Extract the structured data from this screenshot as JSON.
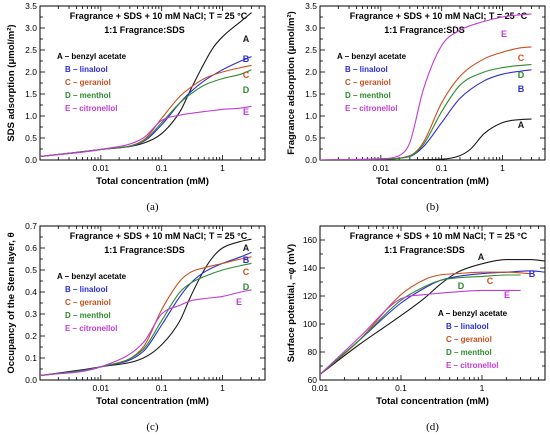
{
  "colors": {
    "A": "#1a1a1a",
    "B": "#2a2ad6",
    "C": "#c8501e",
    "D": "#2e8b2e",
    "E": "#c23bd6"
  },
  "chart_data": [
    {
      "panel_label": "(a)",
      "type": "line",
      "header_line1": "Fragrance + SDS + 10 mM NaCl; T = 25 °C",
      "header_line2": "1:1 Fragrance:SDS",
      "xlabel": "Total concentration (mM)",
      "ylabel": "SDS adsorption (μmol/m²)",
      "xscale": "log",
      "xlim": [
        0.001,
        5
      ],
      "ylim": [
        0,
        3.5
      ],
      "xticks": [
        0.01,
        0.1,
        1
      ],
      "xticklabels": [
        "0.01",
        "0.1",
        "1"
      ],
      "yticks": [
        0,
        0.5,
        1,
        1.5,
        2,
        2.5,
        3,
        3.5
      ],
      "yticklabels": [
        "0.0",
        "0.5",
        "1.0",
        "1.5",
        "2.0",
        "2.5",
        "3.0",
        "3.5"
      ],
      "legend": [
        "A – benzyl acetate",
        "B – linalool",
        "C – geraniol",
        "D – menthol",
        "E – citronellol"
      ],
      "legend_position": "center",
      "series": [
        {
          "name": "A – benzyl acetate",
          "letter": "A",
          "x": [
            0.001,
            0.01,
            0.05,
            0.1,
            0.2,
            0.3,
            0.5,
            0.7,
            1,
            2,
            3
          ],
          "y": [
            0.08,
            0.24,
            0.38,
            0.6,
            1.1,
            1.6,
            2.2,
            2.55,
            2.8,
            3.15,
            3.35
          ]
        },
        {
          "name": "B – linalool",
          "letter": "B",
          "x": [
            0.001,
            0.01,
            0.05,
            0.1,
            0.2,
            0.3,
            0.5,
            1,
            2,
            3
          ],
          "y": [
            0.08,
            0.24,
            0.42,
            0.8,
            1.3,
            1.55,
            1.8,
            2.05,
            2.25,
            2.35
          ]
        },
        {
          "name": "C – geraniol",
          "letter": "C",
          "x": [
            0.001,
            0.01,
            0.05,
            0.1,
            0.2,
            0.3,
            0.5,
            1,
            2,
            3
          ],
          "y": [
            0.08,
            0.24,
            0.45,
            0.95,
            1.45,
            1.65,
            1.85,
            2.0,
            2.1,
            2.15
          ]
        },
        {
          "name": "D – menthol",
          "letter": "D",
          "x": [
            0.001,
            0.01,
            0.05,
            0.1,
            0.2,
            0.3,
            0.5,
            1,
            2,
            3
          ],
          "y": [
            0.08,
            0.24,
            0.43,
            0.85,
            1.3,
            1.5,
            1.7,
            1.85,
            1.95,
            2.05
          ]
        },
        {
          "name": "E – citronellol",
          "letter": "E",
          "x": [
            0.001,
            0.01,
            0.05,
            0.1,
            0.2,
            0.3,
            0.5,
            1,
            2,
            3
          ],
          "y": [
            0.08,
            0.24,
            0.5,
            0.9,
            1.02,
            1.06,
            1.1,
            1.15,
            1.18,
            1.22
          ]
        }
      ]
    },
    {
      "panel_label": "(b)",
      "type": "line",
      "header_line1": "Fragrance + SDS + 10 mM NaCl; T = 25 °C",
      "header_line2": "1:1 Fragrance:SDS",
      "xlabel": "Total concentration (mM)",
      "ylabel": "Fragrance adsorption (μmol/m²)",
      "xscale": "log",
      "xlim": [
        0.001,
        5
      ],
      "ylim": [
        0,
        3.5
      ],
      "xticks": [
        0.01,
        0.1,
        1
      ],
      "xticklabels": [
        "0.01",
        "0.1",
        "1"
      ],
      "yticks": [
        0,
        0.5,
        1,
        1.5,
        2,
        2.5,
        3,
        3.5
      ],
      "yticklabels": [
        "0.0",
        "0.5",
        "1.0",
        "1.5",
        "2.0",
        "2.5",
        "3.0",
        "3.5"
      ],
      "legend": [
        "A – benzyl acetate",
        "B – linalool",
        "C – geraniol",
        "D – menthol",
        "E – citronellol"
      ],
      "legend_position": "left",
      "series": [
        {
          "name": "A – benzyl acetate",
          "letter": "A",
          "x": [
            0.001,
            0.01,
            0.1,
            0.2,
            0.3,
            0.5,
            1,
            2,
            3
          ],
          "y": [
            0.0,
            0.0,
            0.02,
            0.1,
            0.25,
            0.6,
            0.85,
            0.92,
            0.93
          ]
        },
        {
          "name": "B – linalool",
          "letter": "B",
          "x": [
            0.001,
            0.01,
            0.03,
            0.05,
            0.1,
            0.2,
            0.5,
            1,
            2,
            3
          ],
          "y": [
            0.0,
            0.02,
            0.08,
            0.3,
            0.85,
            1.4,
            1.8,
            1.95,
            2.02,
            2.05
          ]
        },
        {
          "name": "C – geraniol",
          "letter": "C",
          "x": [
            0.001,
            0.01,
            0.03,
            0.05,
            0.1,
            0.2,
            0.5,
            1,
            2,
            3
          ],
          "y": [
            0.0,
            0.02,
            0.1,
            0.4,
            1.3,
            1.9,
            2.3,
            2.45,
            2.55,
            2.57
          ]
        },
        {
          "name": "D – menthol",
          "letter": "D",
          "x": [
            0.001,
            0.01,
            0.03,
            0.05,
            0.1,
            0.2,
            0.5,
            1,
            2,
            3
          ],
          "y": [
            0.0,
            0.02,
            0.09,
            0.35,
            1.1,
            1.7,
            2.0,
            2.1,
            2.15,
            2.17
          ]
        },
        {
          "name": "E – citronellol",
          "letter": "E",
          "x": [
            0.001,
            0.01,
            0.02,
            0.03,
            0.05,
            0.1,
            0.2,
            0.5,
            1,
            2,
            3
          ],
          "y": [
            0.0,
            0.03,
            0.1,
            0.4,
            1.6,
            2.6,
            2.95,
            3.15,
            3.25,
            3.3,
            3.32
          ]
        }
      ]
    },
    {
      "panel_label": "(c)",
      "type": "line",
      "header_line1": "Fragrance + SDS + 10 mM NaCl; T = 25 °C",
      "header_line2": "1:1 Fragrance:SDS",
      "xlabel": "Total concentration (mM)",
      "ylabel": "Occupancy of the Stern layer, θ",
      "xscale": "log",
      "xlim": [
        0.001,
        5
      ],
      "ylim": [
        0,
        0.7
      ],
      "xticks": [
        0.01,
        0.1,
        1
      ],
      "xticklabels": [
        "0.01",
        "0.1",
        "1"
      ],
      "yticks": [
        0,
        0.1,
        0.2,
        0.3,
        0.4,
        0.5,
        0.6,
        0.7
      ],
      "yticklabels": [
        "0.0",
        "0.1",
        "0.2",
        "0.3",
        "0.4",
        "0.5",
        "0.6",
        "0.7"
      ],
      "legend": [
        "A – benzyl acetate",
        "B – linalool",
        "C – geraniol",
        "D – menthol",
        "E – citronellol"
      ],
      "legend_position": "center",
      "series": [
        {
          "name": "A – benzyl acetate",
          "letter": "A",
          "x": [
            0.001,
            0.01,
            0.05,
            0.1,
            0.2,
            0.3,
            0.5,
            0.7,
            1,
            2,
            3
          ],
          "y": [
            0.02,
            0.06,
            0.1,
            0.16,
            0.27,
            0.38,
            0.5,
            0.56,
            0.6,
            0.63,
            0.64
          ]
        },
        {
          "name": "B – linalool",
          "letter": "B",
          "x": [
            0.001,
            0.01,
            0.05,
            0.1,
            0.2,
            0.3,
            0.5,
            1,
            2,
            3
          ],
          "y": [
            0.02,
            0.06,
            0.13,
            0.25,
            0.38,
            0.44,
            0.49,
            0.53,
            0.56,
            0.58
          ]
        },
        {
          "name": "C – geraniol",
          "letter": "C",
          "x": [
            0.001,
            0.01,
            0.05,
            0.1,
            0.2,
            0.3,
            0.5,
            1,
            2,
            3
          ],
          "y": [
            0.02,
            0.06,
            0.15,
            0.32,
            0.45,
            0.49,
            0.51,
            0.53,
            0.55,
            0.56
          ]
        },
        {
          "name": "D – menthol",
          "letter": "D",
          "x": [
            0.001,
            0.01,
            0.05,
            0.1,
            0.2,
            0.3,
            0.5,
            1,
            2,
            3
          ],
          "y": [
            0.02,
            0.06,
            0.14,
            0.27,
            0.4,
            0.44,
            0.47,
            0.5,
            0.52,
            0.53
          ]
        },
        {
          "name": "E – citronellol",
          "letter": "E",
          "x": [
            0.001,
            0.01,
            0.05,
            0.1,
            0.2,
            0.3,
            0.5,
            1,
            2,
            3
          ],
          "y": [
            0.02,
            0.06,
            0.17,
            0.3,
            0.34,
            0.36,
            0.37,
            0.38,
            0.4,
            0.41
          ]
        }
      ]
    },
    {
      "panel_label": "(d)",
      "type": "line",
      "header_line1": "Fragrance + SDS + 10 mM NaCl; T = 25 °C",
      "header_line2": "1:1 Fragrance:SDS",
      "xlabel": "Total concentration (mM)",
      "ylabel": "Surface potential, −φ (mV)",
      "xscale": "log",
      "xlim": [
        0.01,
        6
      ],
      "ylim": [
        60,
        170
      ],
      "xticks": [
        0.01,
        0.1,
        1
      ],
      "xticklabels": [
        "0.01",
        "0.1",
        "1"
      ],
      "yticks": [
        60,
        80,
        100,
        120,
        140,
        160
      ],
      "yticklabels": [
        "60",
        "80",
        "100",
        "120",
        "140",
        "160"
      ],
      "legend": [
        "A – benzyl acetate",
        "B – linalool",
        "C – geraniol",
        "D – menthol",
        "E – citronellol"
      ],
      "legend_position": "bottom-right",
      "series": [
        {
          "name": "A – benzyl acetate",
          "letter": "A",
          "x": [
            0.01,
            0.03,
            0.1,
            0.2,
            0.3,
            0.5,
            1,
            2,
            4,
            6
          ],
          "y": [
            64,
            85,
            106,
            119,
            128,
            137,
            143,
            146,
            146,
            145
          ]
        },
        {
          "name": "B – linalool",
          "letter": "B",
          "x": [
            0.01,
            0.03,
            0.1,
            0.2,
            0.3,
            0.5,
            1,
            2,
            4,
            6
          ],
          "y": [
            64,
            88,
            115,
            126,
            131,
            134,
            136,
            137,
            138,
            137
          ]
        },
        {
          "name": "C – geraniol",
          "letter": "C",
          "x": [
            0.01,
            0.03,
            0.1,
            0.2,
            0.3,
            0.5,
            1,
            2,
            4
          ],
          "y": [
            64,
            88,
            121,
            132,
            135,
            136,
            137,
            137,
            136
          ]
        },
        {
          "name": "D – menthol",
          "letter": "D",
          "x": [
            0.01,
            0.03,
            0.1,
            0.2,
            0.3,
            0.5,
            1,
            2,
            3
          ],
          "y": [
            64,
            88,
            117,
            127,
            131,
            133,
            134,
            135,
            135
          ]
        },
        {
          "name": "E – citronellol",
          "letter": "E",
          "x": [
            0.01,
            0.03,
            0.1,
            0.2,
            0.3,
            0.5,
            1,
            2,
            3
          ],
          "y": [
            64,
            90,
            118,
            121,
            122,
            123,
            124,
            124,
            124
          ]
        }
      ]
    }
  ]
}
